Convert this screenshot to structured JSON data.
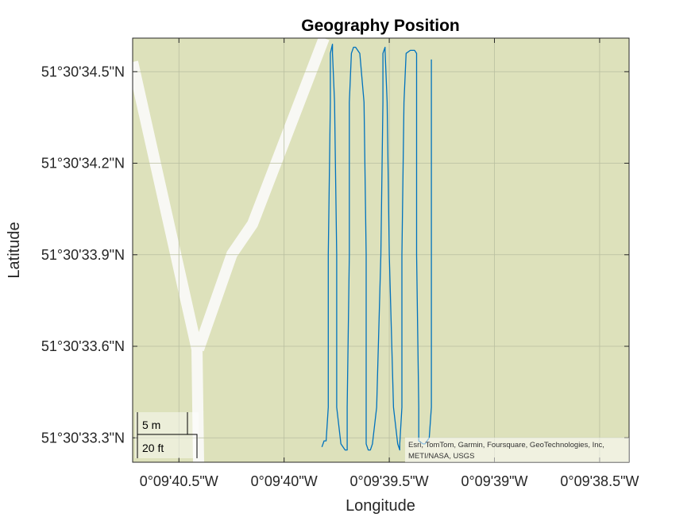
{
  "title": "Geography Position",
  "xlabel": "Longitude",
  "ylabel": "Latitude",
  "x_ticks": [
    "0°09'40.5\"W",
    "0°09'40\"W",
    "0°09'39.5\"W",
    "0°09'39\"W",
    "0°09'38.5\"W"
  ],
  "y_ticks": [
    "51°30'34.5\"N",
    "51°30'34.2\"N",
    "51°30'33.9\"N",
    "51°30'33.6\"N",
    "51°30'33.3\"N"
  ],
  "attribution": [
    "Esri, TomTom, Garmin, Foursquare, GeoTechnologies, Inc,",
    "METI/NASA, USGS"
  ],
  "scale_bar": {
    "metric": "5 m",
    "imperial": "20 ft"
  },
  "colors": {
    "basemap": "#dde1bb",
    "road": "#f8f8f4",
    "track": "#0072bd",
    "grid": "#b9bea0"
  },
  "chart_data": {
    "type": "line",
    "series": [
      {
        "x_lon_sec_W": [
          39.82,
          39.81,
          39.8,
          39.79,
          39.79,
          39.78,
          39.78,
          39.77,
          39.77,
          39.77,
          39.76,
          39.75,
          39.75,
          39.73,
          39.71,
          39.7,
          39.7,
          39.7,
          39.69,
          39.69,
          39.68,
          39.67,
          39.66,
          39.64,
          39.62,
          39.61,
          39.61,
          39.61,
          39.6,
          39.59,
          39.58,
          39.56,
          39.54,
          39.53,
          39.53,
          39.52,
          39.52,
          39.51,
          39.5,
          39.48,
          39.46,
          39.45,
          39.45,
          39.45,
          39.44,
          39.44,
          39.43,
          39.42,
          39.4,
          39.38,
          39.37,
          39.37,
          39.37,
          39.36,
          39.36,
          39.34,
          39.33,
          39.31,
          39.3,
          39.3,
          39.3,
          39.3
        ],
        "y_lat_sec_N": [
          33.27,
          33.29,
          33.29,
          33.4,
          33.9,
          34.4,
          34.56,
          34.59,
          34.59,
          34.56,
          34.4,
          33.9,
          33.4,
          33.28,
          33.26,
          33.26,
          33.28,
          33.4,
          33.9,
          34.4,
          34.56,
          34.58,
          34.58,
          34.56,
          34.4,
          33.9,
          33.4,
          33.28,
          33.26,
          33.26,
          33.28,
          33.4,
          33.9,
          34.4,
          34.56,
          34.58,
          34.57,
          34.4,
          33.9,
          33.4,
          33.28,
          33.26,
          33.26,
          33.28,
          33.4,
          33.9,
          34.4,
          34.56,
          34.57,
          34.57,
          34.56,
          34.4,
          33.9,
          33.4,
          33.29,
          33.28,
          33.28,
          33.3,
          33.4,
          33.9,
          34.4,
          34.54
        ]
      }
    ],
    "xlim": [
      40.72,
      38.36
    ],
    "ylim": [
      33.22,
      34.61
    ],
    "grid": true
  }
}
